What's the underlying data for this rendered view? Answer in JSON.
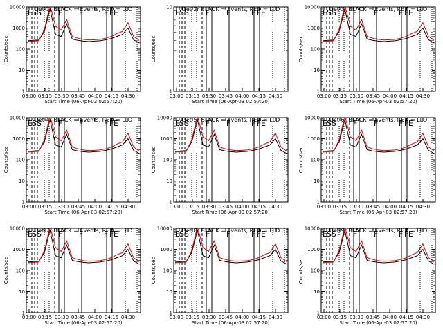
{
  "chart_data": [
    {
      "type": "line",
      "title": "Det 1r BLACK = Events, RED = LLD",
      "xlabel": "Start Time (06-Apr-03 02:57:20)",
      "ylabel": "Counts/sec",
      "y_scale": "log",
      "ylim": [
        1,
        10000
      ],
      "y_ticks": [
        "1",
        "10",
        "100",
        "1000",
        "10000"
      ],
      "x_ticks": [
        "03:00",
        "03:15",
        "03:30",
        "03:45",
        "04:00",
        "04:15",
        "04:30"
      ],
      "markers": [
        "E",
        "SS",
        "F",
        "F",
        "F",
        "F",
        "E"
      ],
      "series": [
        {
          "name": "Events",
          "color": "#000000",
          "values": [
            250,
            260,
            270,
            700,
            8000,
            500,
            400,
            1600,
            300,
            260,
            240,
            230,
            240,
            250,
            280,
            320,
            400,
            500,
            1000,
            280,
            200
          ]
        },
        {
          "name": "LLD",
          "color": "#e00000",
          "values": [
            230,
            240,
            250,
            900,
            12000,
            1200,
            800,
            2500,
            400,
            330,
            290,
            270,
            280,
            290,
            330,
            400,
            550,
            700,
            1800,
            400,
            260
          ]
        }
      ]
    },
    {
      "type": "line",
      "title": "Det 2r BLACK = Events, RED = LLD",
      "xlabel": "Start Time (06-Apr-03 02:57:20)",
      "ylabel": "Counts/sec",
      "y_scale": "log",
      "ylim": [
        1,
        10
      ],
      "y_ticks": [
        "1",
        "10"
      ],
      "x_ticks": [
        "03:00",
        "03:15",
        "03:30",
        "03:45",
        "04:00",
        "04:15",
        "04:30"
      ],
      "markers": [
        "E",
        "SS",
        "F",
        "F",
        "F",
        "F",
        "E"
      ],
      "series": []
    },
    {
      "type": "line",
      "title": "Det 3r BLACK = Events, RED = LLD",
      "xlabel": "Start Time (06-Apr-03 02:57:20)",
      "ylabel": "Counts/sec",
      "y_scale": "log",
      "ylim": [
        1,
        10000
      ],
      "y_ticks": [
        "1",
        "10",
        "100",
        "1000",
        "10000"
      ],
      "x_ticks": [
        "03:00",
        "03:15",
        "03:30",
        "03:45",
        "04:00",
        "04:15",
        "04:30"
      ],
      "markers": [
        "E",
        "SS",
        "F",
        "F",
        "F",
        "F",
        "E"
      ],
      "series": [
        {
          "name": "Events",
          "color": "#000000",
          "values": [
            250,
            260,
            270,
            700,
            8000,
            500,
            400,
            1600,
            300,
            260,
            240,
            230,
            240,
            250,
            280,
            320,
            400,
            500,
            1000,
            280,
            200
          ]
        },
        {
          "name": "LLD",
          "color": "#e00000",
          "values": [
            230,
            240,
            250,
            900,
            12000,
            1200,
            800,
            2500,
            400,
            330,
            290,
            270,
            280,
            290,
            330,
            400,
            550,
            700,
            1800,
            400,
            260
          ]
        }
      ]
    },
    {
      "type": "line",
      "title": "Det 4r BLACK = Events, RED = LLD",
      "xlabel": "Start Time (06-Apr-03 02:57:20)",
      "ylabel": "Counts/sec",
      "y_scale": "log",
      "ylim": [
        1,
        10000
      ],
      "y_ticks": [
        "1",
        "10",
        "100",
        "1000",
        "10000"
      ],
      "x_ticks": [
        "03:00",
        "03:15",
        "03:30",
        "03:45",
        "04:00",
        "04:15",
        "04:30"
      ],
      "markers": [
        "E",
        "SS",
        "F",
        "F",
        "F",
        "F",
        "E"
      ],
      "series": [
        {
          "name": "Events",
          "color": "#000000",
          "values": [
            250,
            260,
            270,
            700,
            8000,
            500,
            400,
            1600,
            300,
            260,
            240,
            230,
            240,
            250,
            280,
            320,
            400,
            500,
            1000,
            280,
            200
          ]
        },
        {
          "name": "LLD",
          "color": "#e00000",
          "values": [
            230,
            240,
            250,
            900,
            12000,
            1200,
            800,
            2500,
            400,
            330,
            290,
            270,
            280,
            290,
            330,
            400,
            550,
            700,
            1800,
            400,
            260
          ]
        }
      ]
    },
    {
      "type": "line",
      "title": "Det 5r BLACK = Events, RED = LLD",
      "xlabel": "Start Time (06-Apr-03 02:57:20)",
      "ylabel": "Counts/sec",
      "y_scale": "log",
      "ylim": [
        1,
        10000
      ],
      "y_ticks": [
        "1",
        "10",
        "100",
        "1000",
        "10000"
      ],
      "x_ticks": [
        "03:00",
        "03:15",
        "03:30",
        "03:45",
        "04:00",
        "04:15",
        "04:30"
      ],
      "markers": [
        "E",
        "SS",
        "F",
        "F",
        "F",
        "F",
        "E"
      ],
      "series": [
        {
          "name": "Events",
          "color": "#000000",
          "values": [
            250,
            260,
            270,
            700,
            8000,
            500,
            400,
            1600,
            300,
            260,
            240,
            230,
            240,
            250,
            280,
            320,
            400,
            500,
            1000,
            280,
            200
          ]
        },
        {
          "name": "LLD",
          "color": "#e00000",
          "values": [
            230,
            240,
            250,
            900,
            12000,
            1200,
            800,
            2500,
            400,
            330,
            290,
            270,
            280,
            290,
            330,
            400,
            550,
            700,
            1800,
            400,
            260
          ]
        }
      ]
    },
    {
      "type": "line",
      "title": "Det 6r BLACK = Events, RED = LLD",
      "xlabel": "Start Time (06-Apr-03 02:57:20)",
      "ylabel": "Counts/sec",
      "y_scale": "log",
      "ylim": [
        1,
        10000
      ],
      "y_ticks": [
        "1",
        "10",
        "100",
        "1000",
        "10000"
      ],
      "x_ticks": [
        "03:00",
        "03:15",
        "03:30",
        "03:45",
        "04:00",
        "04:15",
        "04:30"
      ],
      "markers": [
        "E",
        "SS",
        "F",
        "F",
        "F",
        "F",
        "E"
      ],
      "series": [
        {
          "name": "Events",
          "color": "#000000",
          "values": [
            250,
            260,
            270,
            700,
            8000,
            500,
            400,
            1600,
            300,
            260,
            240,
            230,
            240,
            250,
            280,
            320,
            400,
            500,
            1000,
            280,
            200
          ]
        },
        {
          "name": "LLD",
          "color": "#e00000",
          "values": [
            230,
            240,
            250,
            900,
            12000,
            1200,
            800,
            2500,
            400,
            330,
            290,
            270,
            280,
            290,
            330,
            400,
            550,
            700,
            1800,
            400,
            260
          ]
        }
      ]
    },
    {
      "type": "line",
      "title": "Det 7r BLACK = Events, RED = LLD",
      "xlabel": "Start Time (06-Apr-03 02:57:20)",
      "ylabel": "Counts/sec",
      "y_scale": "log",
      "ylim": [
        1,
        10000
      ],
      "y_ticks": [
        "1",
        "10",
        "100",
        "1000",
        "10000"
      ],
      "x_ticks": [
        "03:00",
        "03:15",
        "03:30",
        "03:45",
        "04:00",
        "04:15",
        "04:30"
      ],
      "markers": [
        "E",
        "SS",
        "F",
        "F",
        "F",
        "F",
        "E"
      ],
      "series": [
        {
          "name": "Events",
          "color": "#000000",
          "values": [
            250,
            260,
            270,
            700,
            8000,
            500,
            400,
            1600,
            300,
            260,
            240,
            230,
            240,
            250,
            280,
            320,
            400,
            500,
            1000,
            280,
            200
          ]
        },
        {
          "name": "LLD",
          "color": "#e00000",
          "values": [
            230,
            240,
            250,
            900,
            12000,
            1200,
            800,
            2500,
            400,
            330,
            290,
            270,
            280,
            290,
            330,
            400,
            550,
            700,
            1800,
            400,
            260
          ]
        }
      ]
    },
    {
      "type": "line",
      "title": "Det 8r BLACK = Events, RED = LLD",
      "xlabel": "Start Time (06-Apr-03 02:57:20)",
      "ylabel": "Counts/sec",
      "y_scale": "log",
      "ylim": [
        1,
        10000
      ],
      "y_ticks": [
        "1",
        "10",
        "100",
        "1000",
        "10000"
      ],
      "x_ticks": [
        "03:00",
        "03:15",
        "03:30",
        "03:45",
        "04:00",
        "04:15",
        "04:30"
      ],
      "markers": [
        "E",
        "SS",
        "F",
        "F",
        "F",
        "F",
        "E"
      ],
      "series": [
        {
          "name": "Events",
          "color": "#000000",
          "values": [
            250,
            260,
            270,
            700,
            8000,
            500,
            400,
            1600,
            300,
            260,
            240,
            230,
            240,
            250,
            280,
            320,
            400,
            500,
            1000,
            280,
            200
          ]
        },
        {
          "name": "LLD",
          "color": "#e00000",
          "values": [
            230,
            240,
            250,
            900,
            12000,
            1200,
            800,
            2500,
            400,
            330,
            290,
            270,
            280,
            290,
            330,
            400,
            550,
            700,
            1800,
            400,
            260
          ]
        }
      ]
    },
    {
      "type": "line",
      "title": "Det 9r BLACK = Events, RED = LLD",
      "xlabel": "Start Time (06-Apr-03 02:57:20)",
      "ylabel": "Counts/sec",
      "y_scale": "log",
      "ylim": [
        1,
        10000
      ],
      "y_ticks": [
        "1",
        "10",
        "100",
        "1000",
        "10000"
      ],
      "x_ticks": [
        "03:00",
        "03:15",
        "03:30",
        "03:45",
        "04:00",
        "04:15",
        "04:30"
      ],
      "markers": [
        "E",
        "SS",
        "F",
        "F",
        "F",
        "F",
        "E"
      ],
      "series": [
        {
          "name": "Events",
          "color": "#000000",
          "values": [
            250,
            260,
            270,
            700,
            8000,
            500,
            400,
            1600,
            300,
            260,
            240,
            230,
            240,
            250,
            280,
            320,
            400,
            500,
            1000,
            280,
            200
          ]
        },
        {
          "name": "LLD",
          "color": "#e00000",
          "values": [
            230,
            240,
            250,
            900,
            12000,
            1200,
            800,
            2500,
            400,
            330,
            290,
            270,
            280,
            290,
            330,
            400,
            550,
            700,
            1800,
            400,
            260
          ]
        }
      ]
    }
  ]
}
